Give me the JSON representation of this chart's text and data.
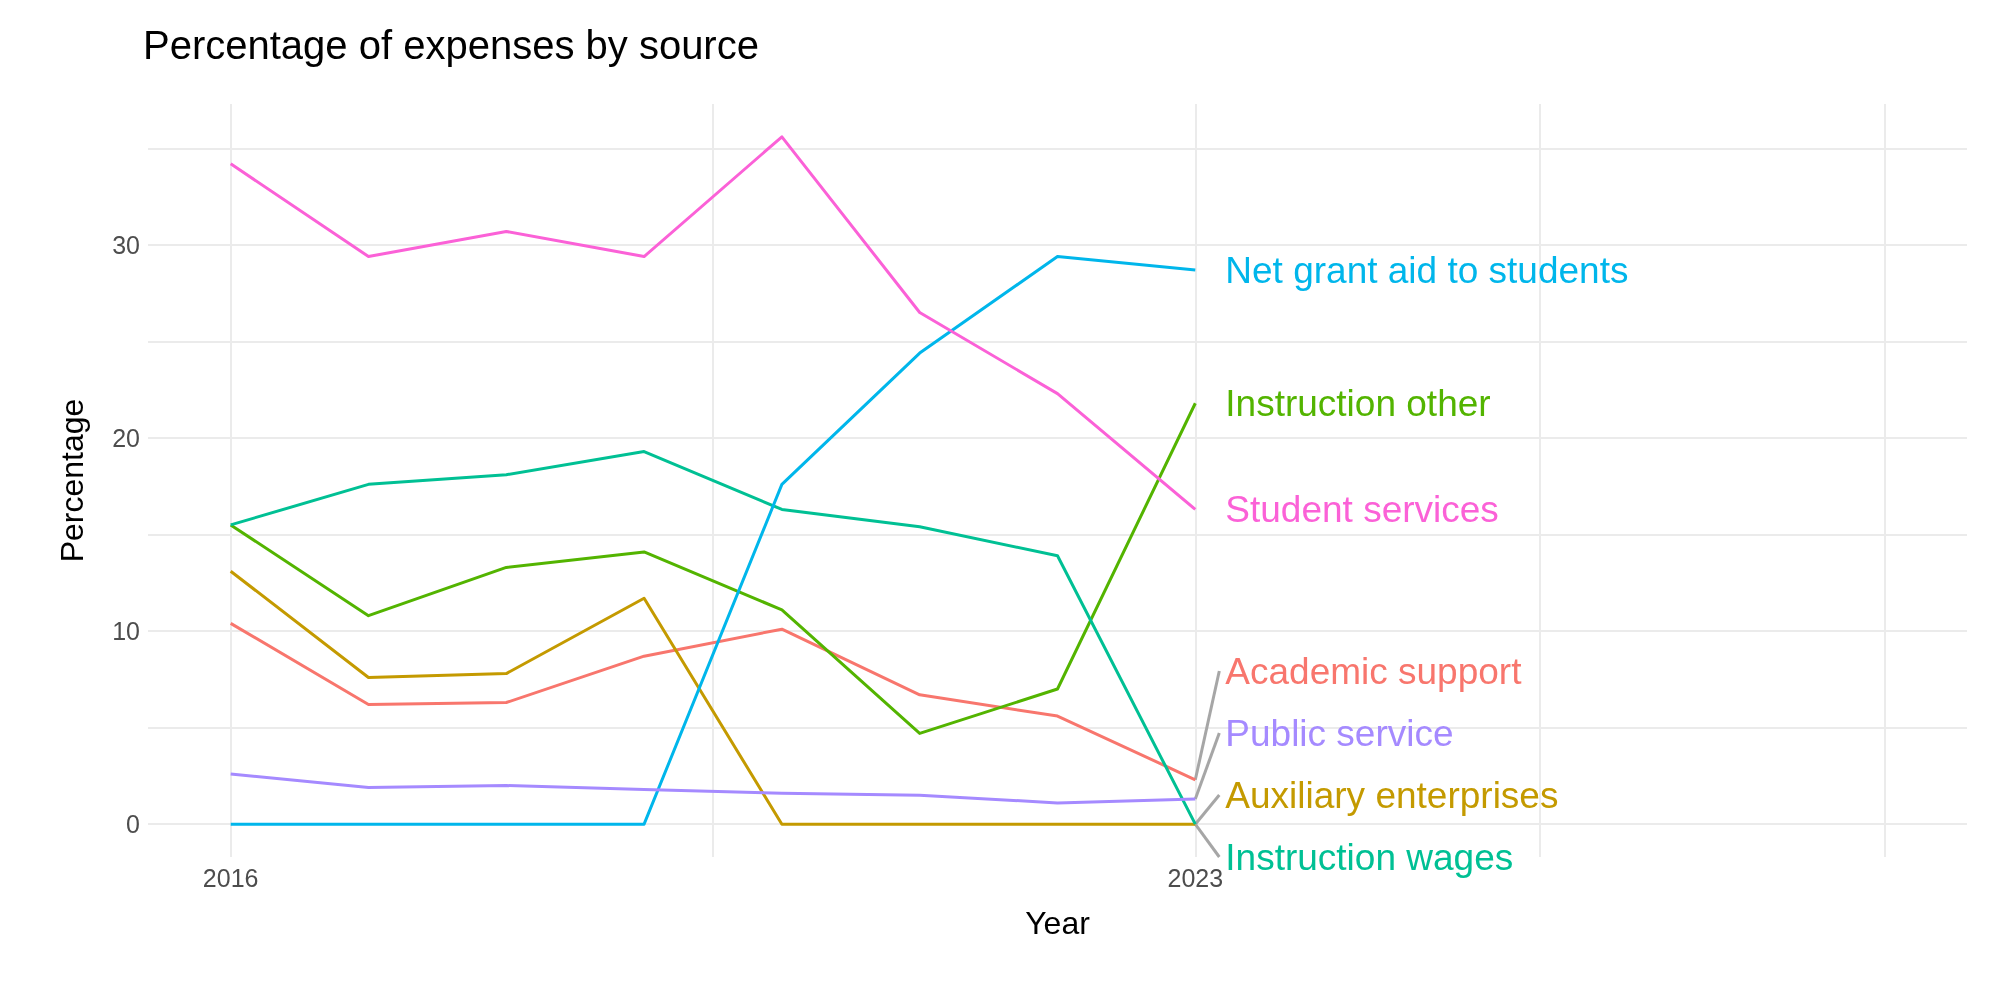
{
  "chart_data": {
    "type": "line",
    "title": "Percentage of expenses by source",
    "xlabel": "Year",
    "ylabel": "Percentage",
    "x": [
      2016,
      2017,
      2018,
      2019,
      2020,
      2021,
      2022,
      2023
    ],
    "series": [
      {
        "name": "Academic support",
        "color": "#f8766d",
        "values": [
          10.4,
          6.2,
          6.3,
          8.7,
          10.1,
          6.7,
          5.6,
          2.3
        ]
      },
      {
        "name": "Auxiliary enterprises",
        "color": "#c49a00",
        "values": [
          13.1,
          7.6,
          7.8,
          11.7,
          0,
          0,
          0,
          0
        ]
      },
      {
        "name": "Instruction other",
        "color": "#53b400",
        "values": [
          15.5,
          10.8,
          13.3,
          14.1,
          11.1,
          4.7,
          7.0,
          21.8
        ]
      },
      {
        "name": "Instruction wages",
        "color": "#00c094",
        "values": [
          15.5,
          17.6,
          18.1,
          19.3,
          16.3,
          15.4,
          13.9,
          0
        ]
      },
      {
        "name": "Net grant aid to students",
        "color": "#00b6eb",
        "values": [
          0,
          0,
          0,
          0,
          17.6,
          24.4,
          29.4,
          28.7
        ]
      },
      {
        "name": "Public service",
        "color": "#a58aff",
        "values": [
          2.6,
          1.9,
          2.0,
          1.8,
          1.6,
          1.5,
          1.1,
          1.3
        ]
      },
      {
        "name": "Student services",
        "color": "#fb61d7",
        "values": [
          34.2,
          29.4,
          30.7,
          29.4,
          35.6,
          26.5,
          22.3,
          16.3
        ]
      }
    ],
    "xlim": [
      2015.4,
      2028.6
    ],
    "xticks": [
      2016,
      {
        "value": 2019.5,
        "label": null
      },
      2023,
      {
        "value": 2025.5,
        "label": null
      },
      {
        "value": 2028,
        "label": null
      }
    ],
    "ylim": [
      -1.7,
      37.3
    ],
    "yticks": [
      0,
      {
        "value": 5,
        "label": null
      },
      10,
      {
        "value": 15,
        "label": null
      },
      20,
      {
        "value": 25,
        "label": null
      },
      30,
      {
        "value": 35,
        "label": null
      }
    ],
    "grid": true,
    "legend": false,
    "marker": "none",
    "line_style": "solid"
  }
}
